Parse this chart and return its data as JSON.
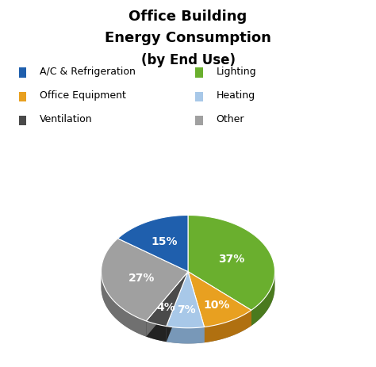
{
  "title_line1": "Office Building",
  "title_line2": "Energy Consumption",
  "title_line3": "(by End Use)",
  "wedge_values": [
    37,
    10,
    7,
    4,
    27,
    15
  ],
  "wedge_colors": [
    "#6AAF2E",
    "#E8A020",
    "#A8C8E8",
    "#4A4A4A",
    "#A0A0A0",
    "#1F5FAD"
  ],
  "wedge_pct": [
    "37%",
    "10%",
    "7%",
    "4%",
    "27%",
    "15%"
  ],
  "depth_colors": [
    "#4A7A1E",
    "#B07010",
    "#7898B8",
    "#222222",
    "#707070",
    "#0F3F8D"
  ],
  "background_color": "#ffffff",
  "legend_items": [
    [
      "A/C & Refrigeration",
      "#1F5FAD"
    ],
    [
      "Office Equipment",
      "#E8A020"
    ],
    [
      "Ventilation",
      "#4A4A4A"
    ],
    [
      "Lighting",
      "#6AAF2E"
    ],
    [
      "Heating",
      "#A8C8E8"
    ],
    [
      "Other",
      "#A0A0A0"
    ]
  ]
}
